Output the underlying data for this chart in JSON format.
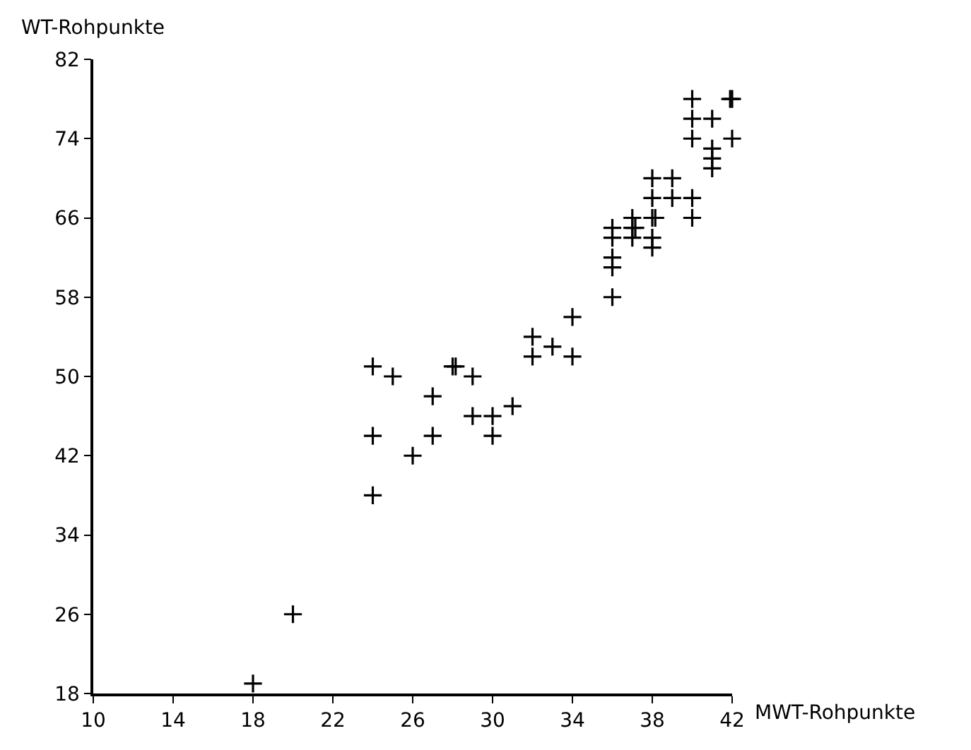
{
  "chart_data": {
    "type": "scatter",
    "xlabel": "MWT-Rohpunkte",
    "ylabel": "WT-Rohpunkte",
    "marker": "cross",
    "legend": false,
    "x": [
      18,
      20,
      24,
      24,
      24,
      25,
      26,
      27,
      27,
      28,
      28.15,
      29,
      29,
      30,
      30,
      31,
      32,
      32,
      33,
      34,
      34,
      36,
      36,
      36,
      36,
      36,
      37,
      37,
      37.15,
      37,
      38,
      38,
      38,
      38.15,
      38,
      38,
      39,
      39,
      40,
      40,
      40,
      40,
      40,
      41,
      41,
      41,
      41,
      42,
      41.9,
      42
    ],
    "values": [
      19,
      26,
      51,
      44,
      38,
      50,
      42,
      48,
      44,
      51,
      51,
      50,
      46,
      46,
      44,
      47,
      54,
      52,
      53,
      56,
      52,
      58,
      61,
      62,
      64,
      65,
      66,
      65,
      65,
      64,
      70,
      68,
      66,
      66,
      64,
      63,
      70,
      68,
      78,
      76,
      74,
      68,
      66,
      76,
      73,
      72,
      71,
      78,
      78,
      74
    ],
    "color": "#000000",
    "xlim": [
      10,
      42
    ],
    "xticks": [
      10,
      14,
      18,
      22,
      26,
      30,
      34,
      38,
      42
    ],
    "ylim": [
      18,
      82
    ],
    "yticks": [
      18,
      26,
      34,
      42,
      50,
      58,
      66,
      74,
      82
    ]
  }
}
